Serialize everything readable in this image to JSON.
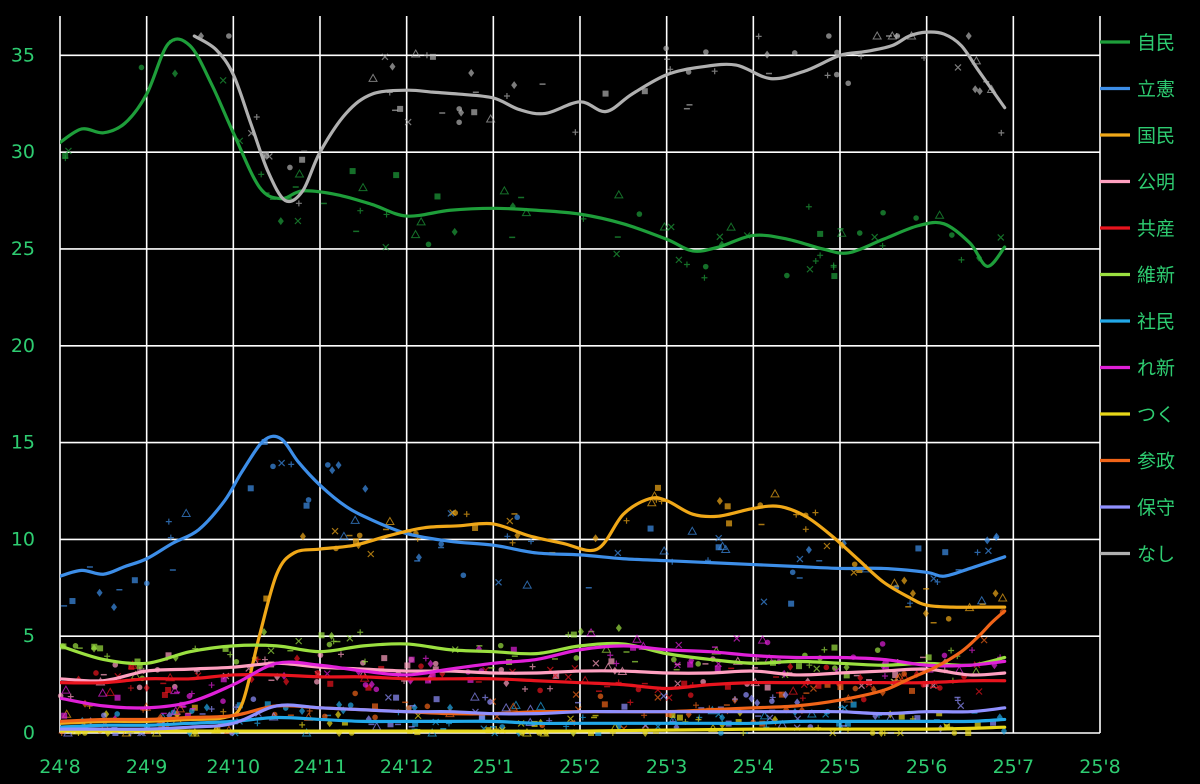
{
  "chart_data": {
    "type": "line",
    "title": "",
    "xlabel": "",
    "ylabel": "",
    "ylim": [
      0,
      36
    ],
    "yticks": [
      0,
      5,
      10,
      15,
      20,
      25,
      30,
      35
    ],
    "xlim": [
      0,
      12
    ],
    "xticks": [
      {
        "x": 0,
        "label": "24'8"
      },
      {
        "x": 1,
        "label": "24'9"
      },
      {
        "x": 2,
        "label": "24'10"
      },
      {
        "x": 3,
        "label": "24'11"
      },
      {
        "x": 4,
        "label": "24'12"
      },
      {
        "x": 5,
        "label": "25'1"
      },
      {
        "x": 6,
        "label": "25'2"
      },
      {
        "x": 7,
        "label": "25'3"
      },
      {
        "x": 8,
        "label": "25'4"
      },
      {
        "x": 9,
        "label": "25'5"
      },
      {
        "x": 10,
        "label": "25'6"
      },
      {
        "x": 11,
        "label": "25'7"
      },
      {
        "x": 12,
        "label": "25'8"
      }
    ],
    "grid": true,
    "legend_position": "right",
    "series": [
      {
        "name": "自民",
        "color": "#1e9e3a",
        "x": [
          0,
          0.25,
          0.5,
          0.75,
          1.0,
          1.25,
          1.5,
          1.75,
          2.0,
          2.3,
          2.55,
          2.8,
          3.2,
          3.6,
          4.0,
          4.5,
          5.0,
          5.5,
          6.0,
          6.5,
          7.0,
          7.3,
          7.6,
          8.0,
          8.4,
          8.8,
          9.1,
          9.5,
          9.9,
          10.2,
          10.5,
          10.7,
          10.9
        ],
        "y": [
          30.5,
          31.2,
          31.0,
          31.5,
          33.0,
          35.6,
          35.5,
          33.5,
          31.0,
          28.2,
          27.6,
          28.0,
          27.8,
          27.3,
          26.7,
          27.0,
          27.1,
          27.0,
          26.8,
          26.3,
          25.5,
          24.9,
          25.1,
          25.7,
          25.5,
          25.0,
          24.8,
          25.5,
          26.2,
          26.3,
          25.3,
          24.1,
          25.1
        ]
      },
      {
        "name": "立憲",
        "color": "#3d8ee8",
        "x": [
          0,
          0.25,
          0.5,
          0.75,
          1.0,
          1.3,
          1.6,
          1.9,
          2.1,
          2.35,
          2.55,
          2.75,
          3.0,
          3.3,
          3.6,
          4.0,
          4.5,
          5.0,
          5.5,
          6.0,
          6.5,
          7.0,
          7.5,
          8.0,
          8.5,
          9.0,
          9.5,
          10.0,
          10.2,
          10.5,
          10.9
        ],
        "y": [
          8.1,
          8.4,
          8.2,
          8.6,
          9.0,
          9.8,
          10.5,
          12.0,
          13.5,
          15.1,
          15.2,
          14.0,
          12.8,
          11.7,
          11.0,
          10.3,
          9.9,
          9.7,
          9.3,
          9.2,
          9.0,
          8.9,
          8.8,
          8.7,
          8.6,
          8.5,
          8.5,
          8.3,
          8.1,
          8.5,
          9.1
        ]
      },
      {
        "name": "国民",
        "color": "#f0a818",
        "x": [
          0,
          0.5,
          1.0,
          1.5,
          1.9,
          2.1,
          2.3,
          2.5,
          2.7,
          3.0,
          3.4,
          3.8,
          4.2,
          4.6,
          5.0,
          5.4,
          5.8,
          6.2,
          6.5,
          6.8,
          7.0,
          7.3,
          7.6,
          8.0,
          8.3,
          8.6,
          8.9,
          9.2,
          9.5,
          9.8,
          10.0,
          10.3,
          10.6,
          10.9
        ],
        "y": [
          0.5,
          0.6,
          0.6,
          0.7,
          0.8,
          1.5,
          5.0,
          8.2,
          9.3,
          9.5,
          9.7,
          10.2,
          10.6,
          10.7,
          10.8,
          10.2,
          9.8,
          9.5,
          11.3,
          12.1,
          12.0,
          11.3,
          11.2,
          11.6,
          11.7,
          11.2,
          10.2,
          9.0,
          7.8,
          7.0,
          6.6,
          6.5,
          6.5,
          6.5
        ]
      },
      {
        "name": "公明",
        "color": "#ffa0c0",
        "x": [
          0,
          0.5,
          1.0,
          1.5,
          2.0,
          2.5,
          3.0,
          3.5,
          4.0,
          4.5,
          5.0,
          5.5,
          6.0,
          6.5,
          7.0,
          7.5,
          8.0,
          8.5,
          9.0,
          9.5,
          10.0,
          10.5,
          10.9
        ],
        "y": [
          2.8,
          2.7,
          3.2,
          3.3,
          3.4,
          3.6,
          3.4,
          3.3,
          3.2,
          3.2,
          3.1,
          3.1,
          3.2,
          3.2,
          3.1,
          3.1,
          3.2,
          3.0,
          3.1,
          3.2,
          3.3,
          3.0,
          3.1
        ]
      },
      {
        "name": "共産",
        "color": "#e8141e",
        "x": [
          0,
          0.5,
          1.0,
          1.5,
          2.0,
          2.5,
          3.0,
          3.5,
          4.0,
          4.5,
          5.0,
          5.5,
          6.0,
          6.5,
          7.0,
          7.5,
          8.0,
          8.5,
          9.0,
          9.5,
          10.0,
          10.5,
          10.9
        ],
        "y": [
          2.6,
          2.6,
          2.8,
          2.8,
          3.0,
          3.0,
          2.9,
          2.9,
          2.8,
          2.8,
          2.8,
          2.7,
          2.6,
          2.5,
          2.3,
          2.5,
          2.6,
          2.6,
          2.6,
          2.6,
          2.6,
          2.7,
          2.7
        ]
      },
      {
        "name": "維新",
        "color": "#9be040",
        "x": [
          0,
          0.5,
          1.0,
          1.5,
          2.0,
          2.5,
          3.0,
          3.5,
          4.0,
          4.5,
          5.0,
          5.5,
          6.0,
          6.5,
          7.0,
          7.5,
          8.0,
          8.5,
          9.0,
          9.5,
          10.0,
          10.5,
          10.9
        ],
        "y": [
          4.5,
          3.8,
          3.6,
          4.2,
          4.5,
          4.5,
          4.2,
          4.5,
          4.6,
          4.3,
          4.2,
          4.1,
          4.5,
          4.6,
          4.1,
          3.8,
          3.6,
          3.7,
          3.6,
          3.5,
          3.6,
          3.5,
          3.9
        ]
      },
      {
        "name": "社民",
        "color": "#22a8e8",
        "x": [
          0,
          0.5,
          1.0,
          1.5,
          2.0,
          2.5,
          3.0,
          3.5,
          4.0,
          4.5,
          5.0,
          5.5,
          6.0,
          6.5,
          7.0,
          7.5,
          8.0,
          8.5,
          9.0,
          9.5,
          10.0,
          10.5,
          10.9
        ],
        "y": [
          0.3,
          0.4,
          0.4,
          0.5,
          0.6,
          0.8,
          0.7,
          0.6,
          0.6,
          0.6,
          0.6,
          0.5,
          0.5,
          0.5,
          0.5,
          0.5,
          0.5,
          0.6,
          0.6,
          0.6,
          0.6,
          0.6,
          0.7
        ]
      },
      {
        "name": "れ新",
        "color": "#e020d8",
        "x": [
          0,
          0.5,
          1.0,
          1.5,
          2.0,
          2.5,
          3.0,
          3.5,
          4.0,
          4.5,
          5.0,
          5.5,
          6.0,
          6.5,
          7.0,
          7.5,
          8.0,
          8.5,
          9.0,
          9.5,
          10.0,
          10.5,
          10.9
        ],
        "y": [
          1.8,
          1.4,
          1.3,
          1.6,
          2.5,
          3.6,
          3.5,
          3.2,
          3.0,
          3.3,
          3.6,
          3.8,
          4.3,
          4.5,
          4.3,
          4.2,
          4.0,
          3.9,
          3.9,
          3.8,
          3.5,
          3.5,
          3.7
        ]
      },
      {
        "name": "つく",
        "color": "#e8d818",
        "x": [
          0,
          2.0,
          4.0,
          6.0,
          8.0,
          10.0,
          10.9
        ],
        "y": [
          0.1,
          0.1,
          0.1,
          0.1,
          0.2,
          0.2,
          0.3
        ]
      },
      {
        "name": "参政",
        "color": "#f06418",
        "x": [
          0,
          0.5,
          1.0,
          1.5,
          2.0,
          2.5,
          3.0,
          3.5,
          4.0,
          4.5,
          5.0,
          5.5,
          6.0,
          6.5,
          7.0,
          7.5,
          8.0,
          8.5,
          9.0,
          9.5,
          9.8,
          10.1,
          10.4,
          10.6,
          10.75,
          10.9
        ],
        "y": [
          0.6,
          0.7,
          0.7,
          0.8,
          0.9,
          1.4,
          1.3,
          1.2,
          1.1,
          1.0,
          1.0,
          1.1,
          1.1,
          1.1,
          1.1,
          1.2,
          1.3,
          1.4,
          1.7,
          2.2,
          2.8,
          3.4,
          4.2,
          5.0,
          5.7,
          6.3
        ]
      },
      {
        "name": "保守",
        "color": "#9090ff",
        "x": [
          0,
          0.5,
          1.0,
          1.5,
          2.0,
          2.5,
          3.0,
          3.5,
          4.0,
          4.5,
          5.0,
          5.5,
          6.0,
          6.5,
          7.0,
          7.5,
          8.0,
          8.5,
          9.0,
          9.5,
          10.0,
          10.5,
          10.9
        ],
        "y": [
          0.2,
          0.2,
          0.2,
          0.3,
          0.5,
          1.4,
          1.3,
          1.2,
          1.1,
          1.1,
          1.0,
          1.0,
          1.1,
          1.1,
          1.1,
          1.1,
          1.1,
          1.1,
          1.1,
          1.0,
          1.1,
          1.1,
          1.3
        ]
      },
      {
        "name": "なし",
        "color": "#b0b0b0",
        "x": [
          1.55,
          1.8,
          2.0,
          2.2,
          2.4,
          2.6,
          2.8,
          3.0,
          3.3,
          3.6,
          4.0,
          4.3,
          4.6,
          5.0,
          5.3,
          5.6,
          6.0,
          6.3,
          6.6,
          7.0,
          7.4,
          7.8,
          8.2,
          8.6,
          9.0,
          9.3,
          9.6,
          9.8,
          10.0,
          10.2,
          10.4,
          10.6,
          10.9
        ],
        "y": [
          36.0,
          35.3,
          34.0,
          31.5,
          29.0,
          27.5,
          28.0,
          30.0,
          32.0,
          33.0,
          33.2,
          33.1,
          33.0,
          32.8,
          32.2,
          32.0,
          32.6,
          32.1,
          33.0,
          34.0,
          34.4,
          34.5,
          33.8,
          34.2,
          35.0,
          35.2,
          35.5,
          36.0,
          36.2,
          36.1,
          35.5,
          34.2,
          32.3
        ]
      }
    ]
  }
}
